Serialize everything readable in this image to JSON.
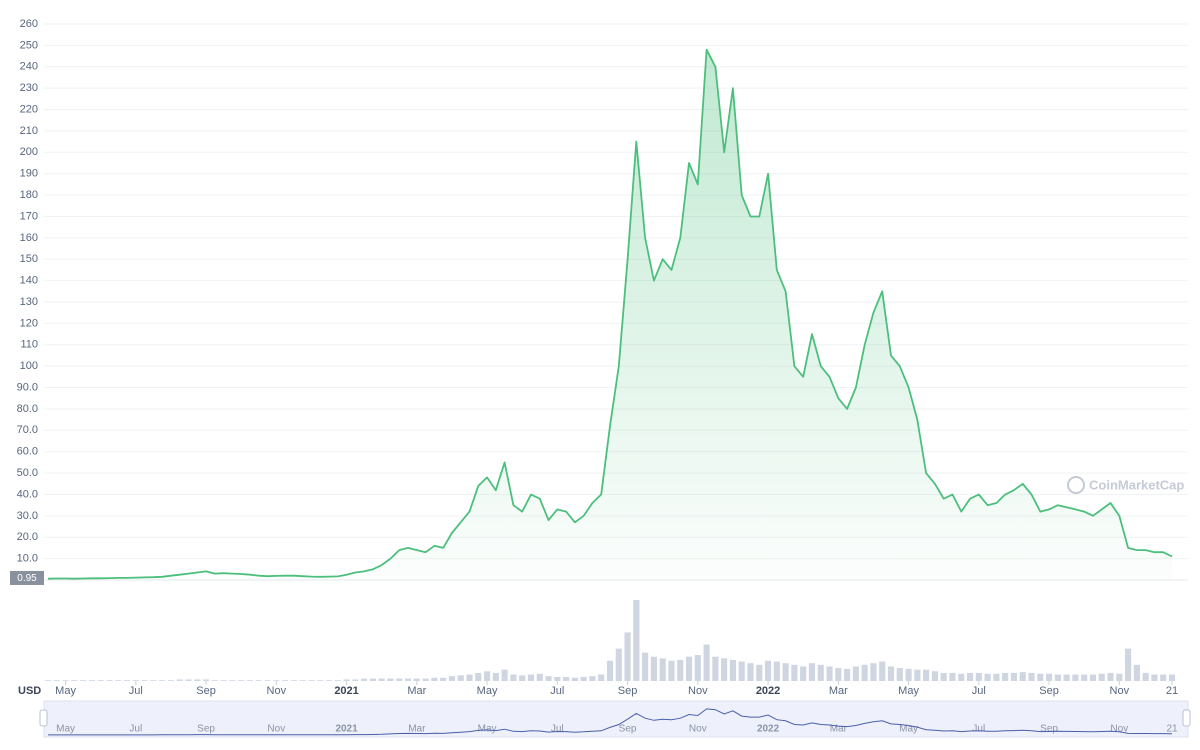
{
  "chart_data": {
    "type": "area",
    "currency_label": "USD",
    "watermark": "CoinMarketCap",
    "color": "#4cbf7c",
    "volume_color": "#cfd6e2",
    "grid": true,
    "ylim": [
      0,
      260
    ],
    "yticks": [
      {
        "value": 10,
        "label": "10.0"
      },
      {
        "value": 20,
        "label": "20.0"
      },
      {
        "value": 30,
        "label": "30.0"
      },
      {
        "value": 40,
        "label": "40.0"
      },
      {
        "value": 50,
        "label": "50.0"
      },
      {
        "value": 60,
        "label": "60.0"
      },
      {
        "value": 70,
        "label": "70.0"
      },
      {
        "value": 80,
        "label": "80.0"
      },
      {
        "value": 90,
        "label": "90.0"
      },
      100,
      110,
      120,
      130,
      140,
      150,
      160,
      170,
      180,
      190,
      200,
      210,
      220,
      230,
      240,
      250,
      260
    ],
    "price_marker": 0.95,
    "categories": [
      null,
      null,
      "May",
      null,
      null,
      null,
      null,
      null,
      null,
      null,
      "Jul",
      null,
      null,
      null,
      null,
      null,
      null,
      null,
      "Sep",
      null,
      null,
      null,
      null,
      null,
      null,
      null,
      "Nov",
      null,
      null,
      null,
      null,
      null,
      null,
      null,
      "2021",
      null,
      null,
      null,
      null,
      null,
      null,
      null,
      "Mar",
      null,
      null,
      null,
      null,
      null,
      null,
      null,
      "May",
      null,
      null,
      null,
      null,
      null,
      null,
      null,
      "Jul",
      null,
      null,
      null,
      null,
      null,
      null,
      null,
      "Sep",
      null,
      null,
      null,
      null,
      null,
      null,
      null,
      "Nov",
      null,
      null,
      null,
      null,
      null,
      null,
      null,
      "2022",
      null,
      null,
      null,
      null,
      null,
      null,
      null,
      "Mar",
      null,
      null,
      null,
      null,
      null,
      null,
      null,
      "May",
      null,
      null,
      null,
      null,
      null,
      null,
      null,
      "Jul",
      null,
      null,
      null,
      null,
      null,
      null,
      null,
      "Sep",
      null,
      null,
      null,
      null,
      null,
      null,
      null,
      "Nov",
      null,
      null,
      null,
      null,
      null,
      "21"
    ],
    "values": [
      0.6,
      0.7,
      0.7,
      0.6,
      0.7,
      0.8,
      0.8,
      0.9,
      1.0,
      1.0,
      1.1,
      1.2,
      1.3,
      1.5,
      2.0,
      2.5,
      3.0,
      3.5,
      4.0,
      3.0,
      3.2,
      3.0,
      2.8,
      2.5,
      2.0,
      1.8,
      1.9,
      2.0,
      2.0,
      1.8,
      1.6,
      1.5,
      1.6,
      1.7,
      2.5,
      3.5,
      4.0,
      5.0,
      7.0,
      10,
      14,
      15,
      14,
      13,
      16,
      15,
      22,
      27,
      32,
      44,
      48,
      42,
      55,
      35,
      32,
      40,
      38,
      28,
      33,
      32,
      27,
      30,
      36,
      40,
      72,
      100,
      150,
      205,
      160,
      140,
      150,
      145,
      160,
      195,
      185,
      248,
      240,
      200,
      230,
      180,
      170,
      170,
      190,
      145,
      135,
      100,
      95,
      115,
      100,
      95,
      85,
      80,
      90,
      110,
      125,
      135,
      105,
      100,
      90,
      75,
      50,
      45,
      38,
      40,
      32,
      38,
      40,
      35,
      36,
      40,
      42,
      45,
      40,
      32,
      33,
      35,
      34,
      33,
      32,
      30,
      33,
      36,
      30,
      15,
      14,
      14,
      13,
      13,
      11
    ],
    "volume": {
      "ylim": [
        0,
        100
      ],
      "values": [
        1,
        1,
        1,
        1,
        1,
        1,
        1,
        1,
        1,
        1,
        1,
        1,
        1,
        1,
        1,
        2,
        2,
        2,
        2,
        1,
        1,
        1,
        1,
        1,
        1,
        1,
        1,
        1,
        1,
        1,
        1,
        1,
        1,
        1,
        2,
        2,
        3,
        3,
        3,
        3,
        3,
        3,
        3,
        3,
        4,
        4,
        6,
        7,
        8,
        10,
        12,
        10,
        14,
        8,
        7,
        8,
        9,
        6,
        5,
        5,
        4,
        5,
        6,
        8,
        25,
        40,
        60,
        100,
        35,
        30,
        28,
        25,
        26,
        30,
        32,
        45,
        30,
        28,
        26,
        24,
        22,
        20,
        25,
        24,
        22,
        20,
        18,
        22,
        20,
        18,
        16,
        15,
        18,
        20,
        22,
        24,
        18,
        16,
        15,
        14,
        14,
        12,
        10,
        10,
        9,
        10,
        10,
        9,
        9,
        10,
        10,
        11,
        10,
        9,
        9,
        8,
        8,
        8,
        8,
        8,
        9,
        10,
        9,
        40,
        20,
        10,
        8,
        8,
        8
      ]
    }
  }
}
